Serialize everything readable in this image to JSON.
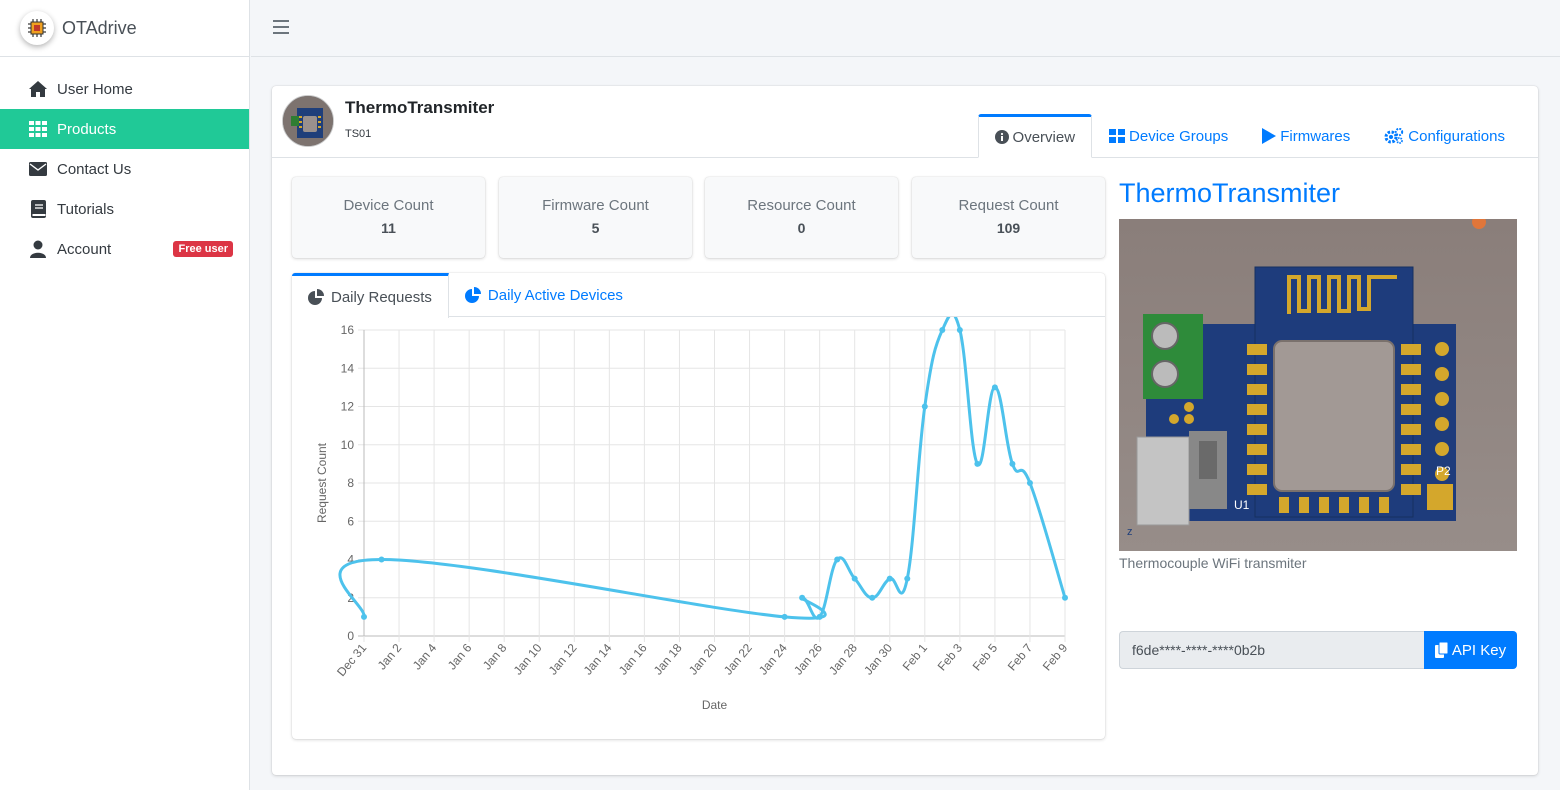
{
  "brand": {
    "name": "OTAdrive"
  },
  "sidebar": {
    "items": [
      {
        "label": "User Home",
        "icon": "home-icon"
      },
      {
        "label": "Products",
        "icon": "grid-icon",
        "active": true
      },
      {
        "label": "Contact Us",
        "icon": "envelope-icon"
      },
      {
        "label": "Tutorials",
        "icon": "book-icon"
      },
      {
        "label": "Account",
        "icon": "user-icon",
        "badge": "Free user"
      }
    ]
  },
  "product": {
    "title": "ThermoTransmiter",
    "code": "TS01",
    "tabs": [
      {
        "label": "Overview",
        "icon": "info-circle-icon",
        "active": true
      },
      {
        "label": "Device Groups",
        "icon": "grid-icon"
      },
      {
        "label": "Firmwares",
        "icon": "play-icon"
      },
      {
        "label": "Configurations",
        "icon": "cogs-icon"
      }
    ]
  },
  "stats": [
    {
      "label": "Device Count",
      "value": "11"
    },
    {
      "label": "Firmware Count",
      "value": "5"
    },
    {
      "label": "Resource Count",
      "value": "0"
    },
    {
      "label": "Request Count",
      "value": "109"
    }
  ],
  "chart_tabs": [
    {
      "label": "Daily Requests",
      "icon": "pie-chart-icon",
      "active": true
    },
    {
      "label": "Daily Active Devices",
      "icon": "pie-chart-icon"
    }
  ],
  "chart_data": {
    "type": "line",
    "xlabel": "Date",
    "ylabel": "Request Count",
    "ylim": [
      0,
      16
    ],
    "yticks": [
      0,
      2,
      4,
      6,
      8,
      10,
      12,
      14,
      16
    ],
    "xlim": [
      "Dec 31",
      "Feb 9"
    ],
    "xticks": [
      "Dec 31",
      "Jan 2",
      "Jan 4",
      "Jan 6",
      "Jan 8",
      "Jan 10",
      "Jan 12",
      "Jan 14",
      "Jan 16",
      "Jan 18",
      "Jan 20",
      "Jan 22",
      "Jan 24",
      "Jan 26",
      "Jan 28",
      "Jan 30",
      "Feb 1",
      "Feb 3",
      "Feb 5",
      "Feb 7",
      "Feb 9"
    ],
    "grid": true,
    "color": "#4dc2ec",
    "series": [
      {
        "points": [
          {
            "x": "Dec 31",
            "y": 1
          },
          {
            "x": "Jan 1",
            "y": 4
          },
          {
            "x": "Jan 24",
            "y": 1
          },
          {
            "x": "Jan 25",
            "y": 2
          },
          {
            "x": "Jan 26",
            "y": 1
          },
          {
            "x": "Jan 27",
            "y": 4
          },
          {
            "x": "Jan 28",
            "y": 3
          },
          {
            "x": "Jan 29",
            "y": 2
          },
          {
            "x": "Jan 30",
            "y": 3
          },
          {
            "x": "Jan 31",
            "y": 3
          },
          {
            "x": "Feb 1",
            "y": 12
          },
          {
            "x": "Feb 2",
            "y": 16
          },
          {
            "x": "Feb 3",
            "y": 16
          },
          {
            "x": "Feb 4",
            "y": 9
          },
          {
            "x": "Feb 5",
            "y": 13
          },
          {
            "x": "Feb 6",
            "y": 9
          },
          {
            "x": "Feb 7",
            "y": 8
          },
          {
            "x": "Feb 9",
            "y": 2
          }
        ]
      }
    ]
  },
  "right_panel": {
    "title": "ThermoTransmiter",
    "description": "Thermocouple WiFi transmiter",
    "image_labels": {
      "u1": "U1",
      "p2": "P2",
      "z": "z"
    },
    "api_key_value": "f6de****-****-****0b2b",
    "api_key_button": "API Key"
  },
  "colors": {
    "accent": "#007bff",
    "active_nav": "#20c997",
    "badge": "#dc3545",
    "line": "#4dc2ec"
  }
}
